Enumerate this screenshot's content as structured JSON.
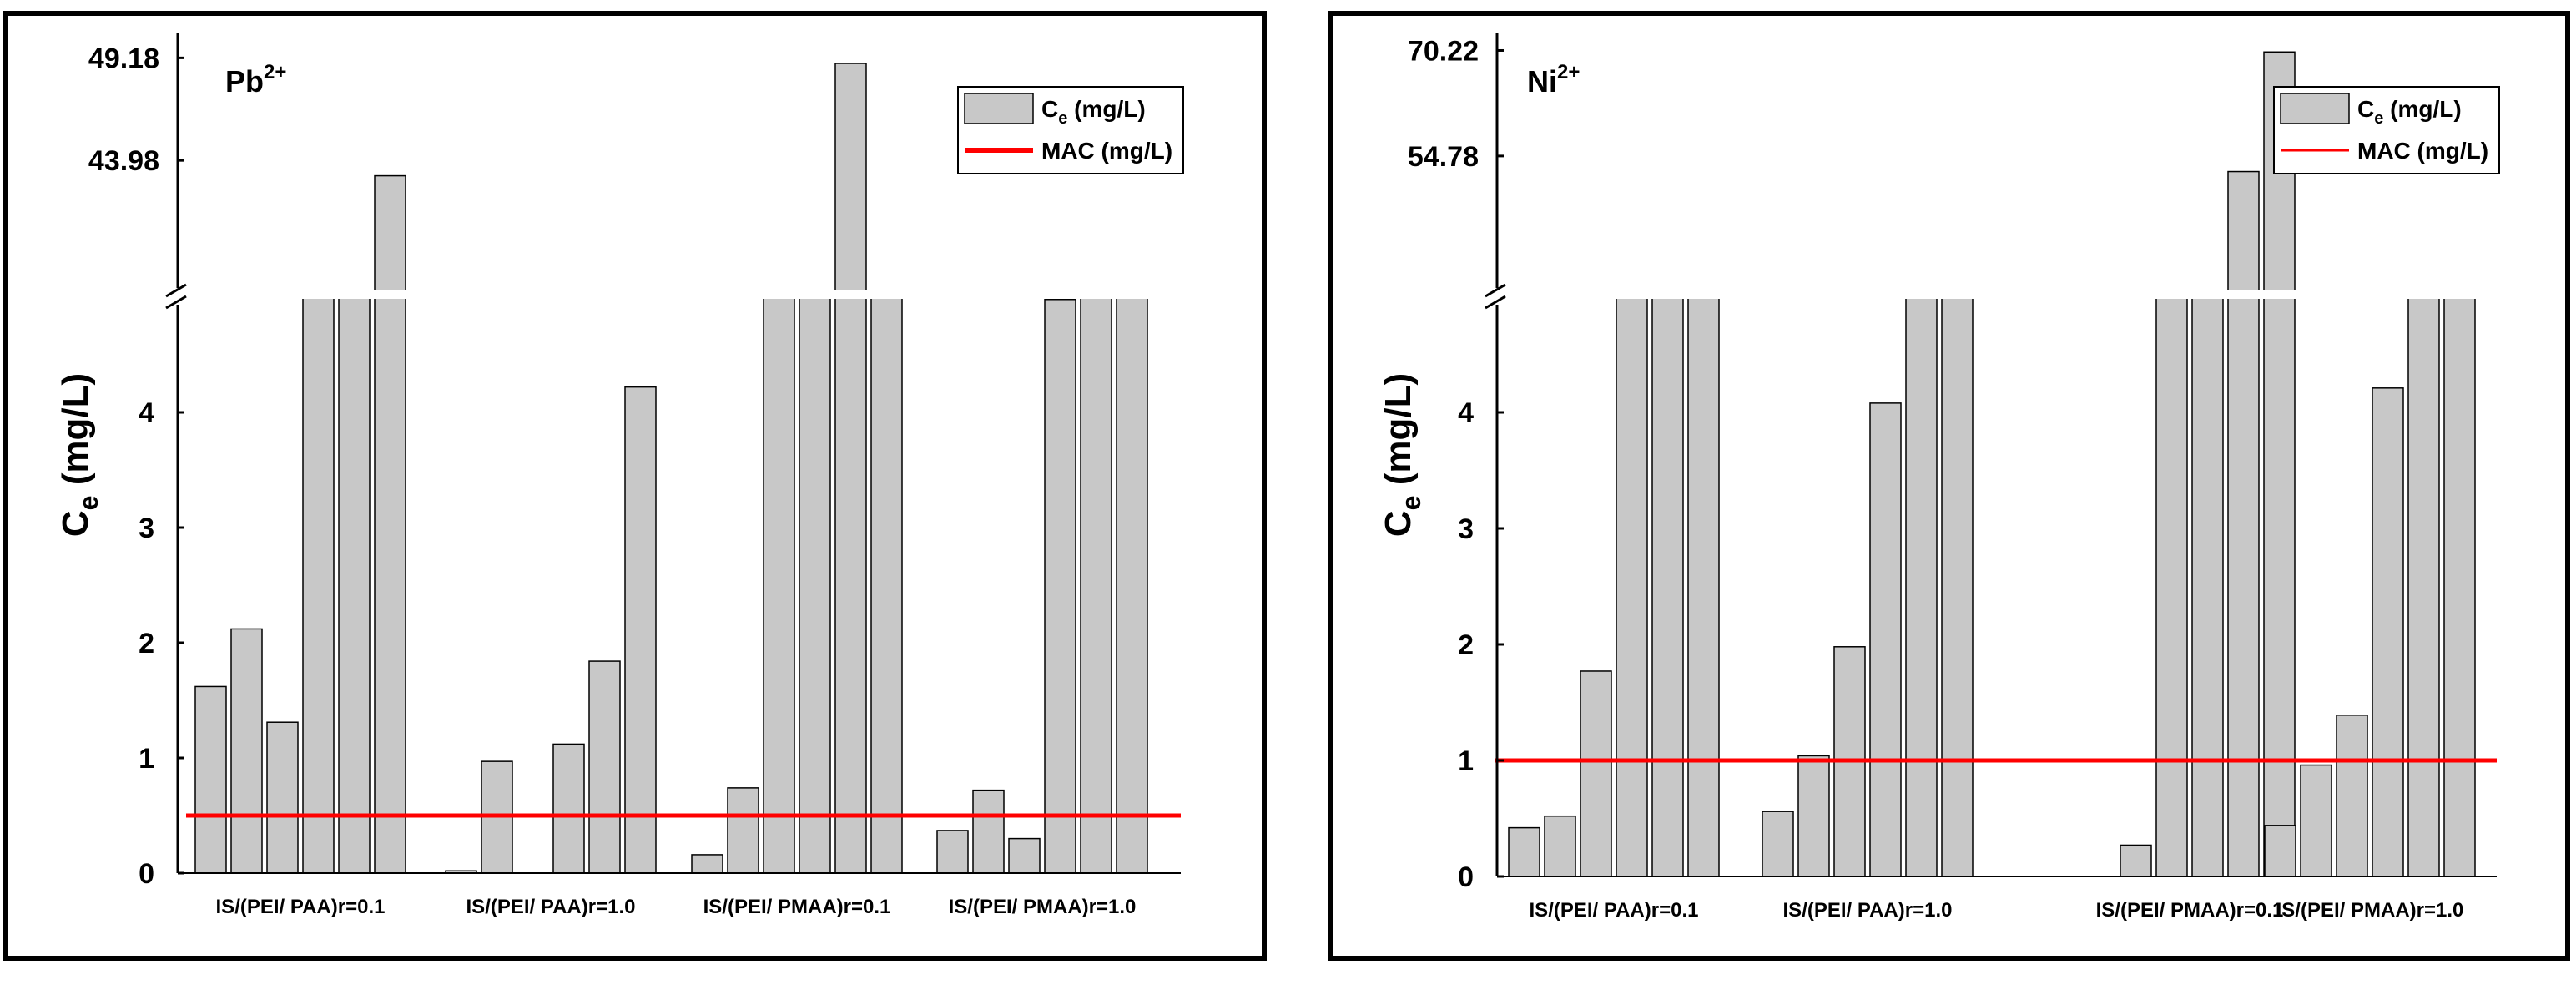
{
  "chart_data": [
    {
      "type": "bar",
      "title": "Pb2+",
      "ion": {
        "base": "Pb",
        "charge": "2+"
      },
      "ylabel": {
        "base": "C",
        "sub": "e",
        "tail": " (mg/L)"
      },
      "xlabel": "",
      "categories": [
        "IS/(PEI/ PAA)r=0.1",
        "IS/(PEI/ PAA)r=1.0",
        "IS/(PEI/ PMAA)r=0.1",
        "IS/(PEI/ PMAA)r=1.0"
      ],
      "bars_per_group": 6,
      "values": [
        [
          1.62,
          2.12,
          1.31,
          6.0,
          6.0,
          43.2
        ],
        [
          0.02,
          0.97,
          0.0,
          1.12,
          1.84,
          4.22
        ],
        [
          0.16,
          0.74,
          6.0,
          6.0,
          48.9,
          6.0
        ],
        [
          0.37,
          0.72,
          0.3,
          4.98,
          6.0,
          6.0
        ]
      ],
      "y_lower_ticks": [
        "0",
        "1",
        "2",
        "3",
        "4"
      ],
      "y_upper_ticks": [
        "43.98",
        "49.18"
      ],
      "y_upper_tick_values": [
        43.98,
        49.18
      ],
      "ylim_lower": [
        0,
        5
      ],
      "ylim_upper": [
        37.0,
        50.0
      ],
      "mac": 0.5,
      "legend": {
        "bar_label": {
          "base": "C",
          "sub": "e",
          "tail": " (mg/L)"
        },
        "line_label": "MAC (mg/L)",
        "position": "top-right"
      },
      "colors": {
        "bar": "#c8c8c8",
        "mac": "#ff0000"
      }
    },
    {
      "type": "bar",
      "title": "Ni2+",
      "ion": {
        "base": "Ni",
        "charge": "2+"
      },
      "ylabel": {
        "base": "C",
        "sub": "e",
        "tail": " (mg/L)"
      },
      "xlabel": "",
      "categories": [
        "IS/(PEI/ PAA)r=0.1",
        "IS/(PEI/ PAA)r=1.0",
        "IS/(PEI/ PMAA)r=0.1",
        "IS/(PEI/ PMAA)r=1.0"
      ],
      "bars_per_group": 6,
      "values": [
        [
          0.42,
          0.52,
          1.77,
          6.0,
          6.0,
          6.0
        ],
        [
          0.56,
          1.04,
          1.98,
          4.08,
          6.0,
          6.0
        ],
        [
          0.0,
          0.27,
          6.0,
          6.0,
          52.5,
          70.0
        ],
        [
          0.44,
          0.96,
          1.39,
          4.21,
          6.0,
          6.0
        ]
      ],
      "y_lower_ticks": [
        "0",
        "1",
        "2",
        "3",
        "4"
      ],
      "y_upper_ticks": [
        "54.78",
        "70.22"
      ],
      "y_upper_tick_values": [
        54.78,
        70.22
      ],
      "ylim_lower": [
        0,
        5
      ],
      "ylim_upper": [
        34.0,
        71.5
      ],
      "mac": 1.0,
      "legend": {
        "bar_label": {
          "base": "C",
          "sub": "e",
          "tail": " (mg/L)"
        },
        "line_label": "MAC (mg/L)",
        "position": "top-right"
      },
      "colors": {
        "bar": "#c8c8c8",
        "mac": "#ff0000"
      }
    }
  ]
}
